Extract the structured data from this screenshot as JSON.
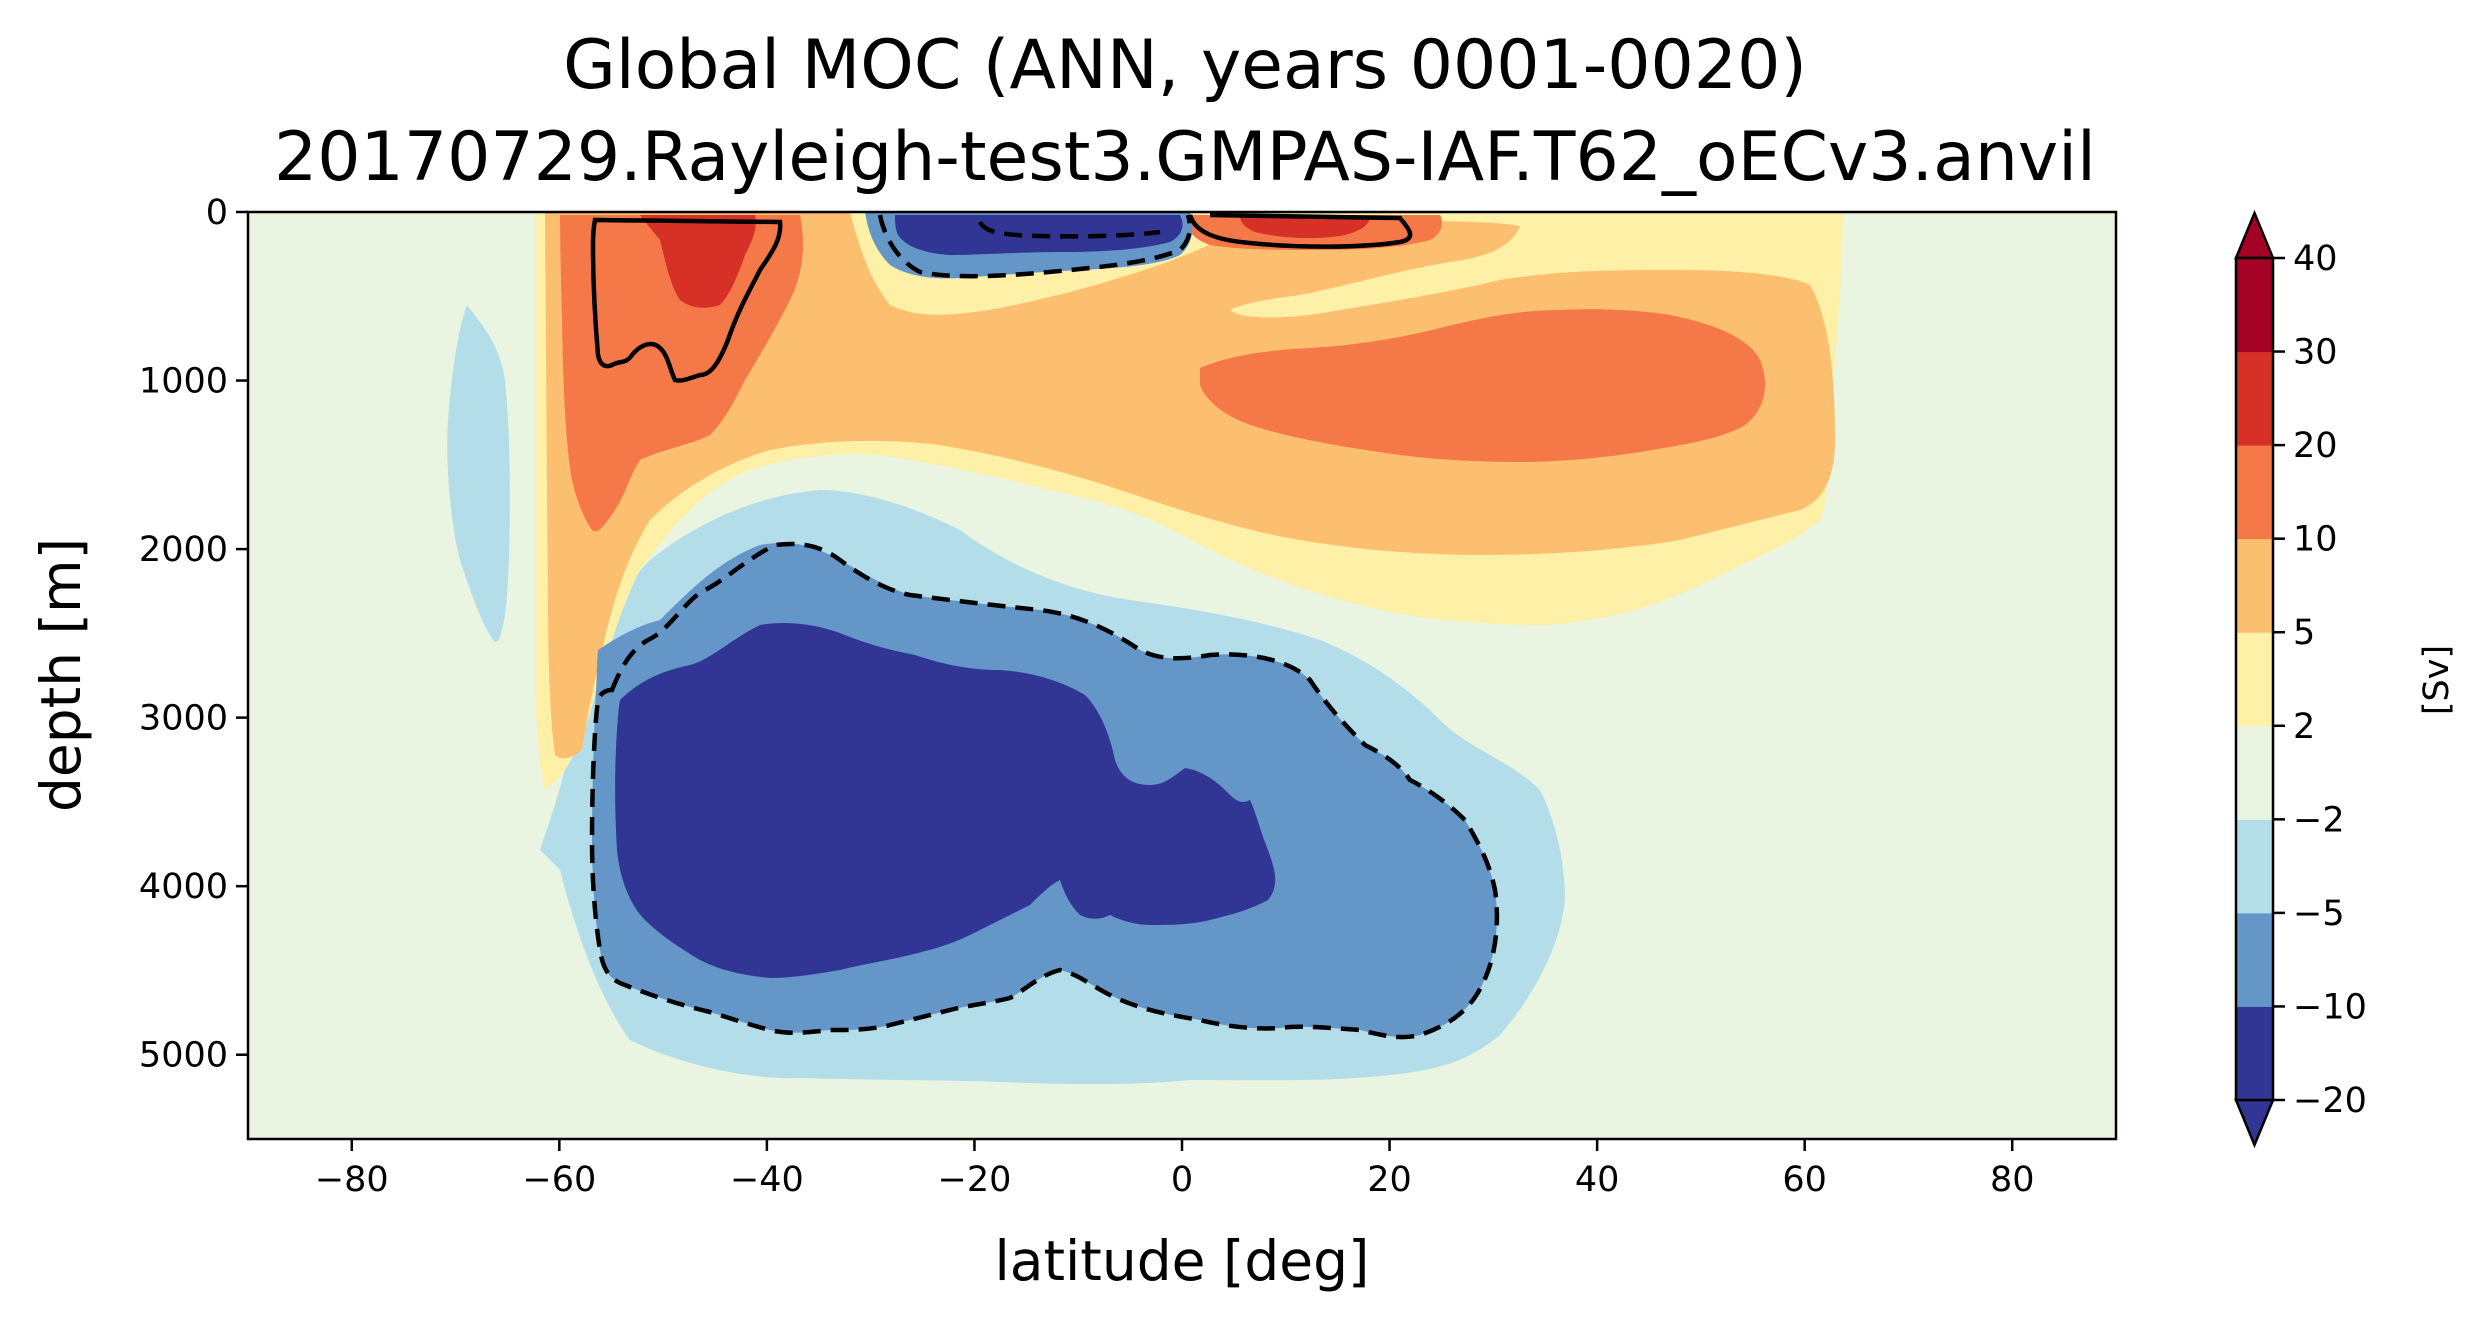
{
  "chart_data": {
    "type": "filled-contour",
    "title_line1": "Global MOC (ANN, years 0001-0020)",
    "title_line2": "20170729.Rayleigh-test3.GMPAS-IAF.T62_oECv3.anvil",
    "xlabel": "latitude [deg]",
    "ylabel": "depth [m]",
    "xlim": [
      -90,
      90
    ],
    "ylim": [
      5500,
      0
    ],
    "xticks": [
      -80,
      -60,
      -40,
      -20,
      0,
      20,
      40,
      60,
      80
    ],
    "xtick_labels": [
      "−80",
      "−60",
      "−40",
      "−20",
      "0",
      "20",
      "40",
      "60",
      "80"
    ],
    "yticks": [
      0,
      1000,
      2000,
      3000,
      4000,
      5000
    ],
    "ytick_labels": [
      "0",
      "1000",
      "2000",
      "3000",
      "4000",
      "5000"
    ],
    "colorbar": {
      "label": "[Sv]",
      "levels": [
        -20,
        -10,
        -5,
        -2,
        2,
        5,
        10,
        20,
        30,
        40
      ],
      "tick_labels": [
        "−20",
        "−10",
        "−5",
        "−2",
        "2",
        "5",
        "10",
        "20",
        "30",
        "40"
      ],
      "colors": [
        "#313695",
        "#6496c8",
        "#b3dde9",
        "#e9f4e1",
        "#fff0a8",
        "#fcbe6f",
        "#f57948",
        "#d73027",
        "#a50026"
      ],
      "under_color": "#313695",
      "over_color": "#a50026",
      "extend": "both"
    },
    "background_value_color": "#e9f4e1",
    "contour_lines": [
      {
        "level": 10,
        "style": "solid",
        "color": "#000000"
      },
      {
        "level": -10,
        "style": "dashed",
        "color": "#000000"
      }
    ],
    "regions": [
      {
        "name": "lower overturning cell core",
        "range": "<-20",
        "lat_range": [
          -57,
          9
        ],
        "depth_range": [
          2400,
          4600
        ]
      },
      {
        "name": "lower overturning cell",
        "range": "-10 to -20",
        "lat_range": [
          -58,
          29
        ],
        "depth_range": [
          1950,
          4950
        ]
      },
      {
        "name": "upper cell southern sinking",
        "range": "10 to 30",
        "lat_range": [
          -56,
          -40
        ],
        "depth_range": [
          0,
          1000
        ]
      },
      {
        "name": "upper cell northern maximum",
        "range": "10 to 20",
        "lat_range": [
          2,
          56
        ],
        "depth_range": [
          550,
          1480
        ]
      },
      {
        "name": "tropical surface cells",
        "range": "-20 to 30",
        "lat_range": [
          -29,
          22
        ],
        "depth_range": [
          0,
          380
        ]
      }
    ]
  }
}
